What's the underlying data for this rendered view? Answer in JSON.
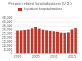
{
  "chart_data": {
    "type": "bar",
    "title": "Firearm-related hospitalizations (U.S.)",
    "x": [
      2000,
      2001,
      2002,
      2003,
      2004,
      2005,
      2006,
      2007,
      2008,
      2009,
      2010,
      2011,
      2012,
      2013,
      2014,
      2015,
      2016
    ],
    "series": [
      {
        "name": "In-patient hospitalizations",
        "color": "#c0392b",
        "values": [
          29000,
          29200,
          29800,
          30500,
          32000,
          33500,
          31500,
          30200,
          29500,
          28500,
          28200,
          27800,
          26500,
          26200,
          26800,
          30500,
          32500
        ]
      }
    ],
    "xlim": [
      1999,
      2017
    ],
    "xticks": [
      2000,
      2005,
      2010,
      2015
    ],
    "ylim": [
      0,
      45000
    ],
    "yticks": [
      0,
      {
        "value": 5000,
        "label": "5,000"
      },
      {
        "value": 10000,
        "label": "10,000"
      },
      {
        "value": 15000,
        "label": "15,000"
      },
      {
        "value": 20000,
        "label": "20,000"
      },
      {
        "value": 25000,
        "label": "25,000"
      },
      {
        "value": 30000,
        "label": "30,000"
      },
      {
        "value": 35000,
        "label": "35,000"
      },
      {
        "value": 40000,
        "label": "40,000"
      },
      {
        "value": 45000,
        "label": "45,000"
      }
    ],
    "grid": true,
    "legend": "top"
  }
}
